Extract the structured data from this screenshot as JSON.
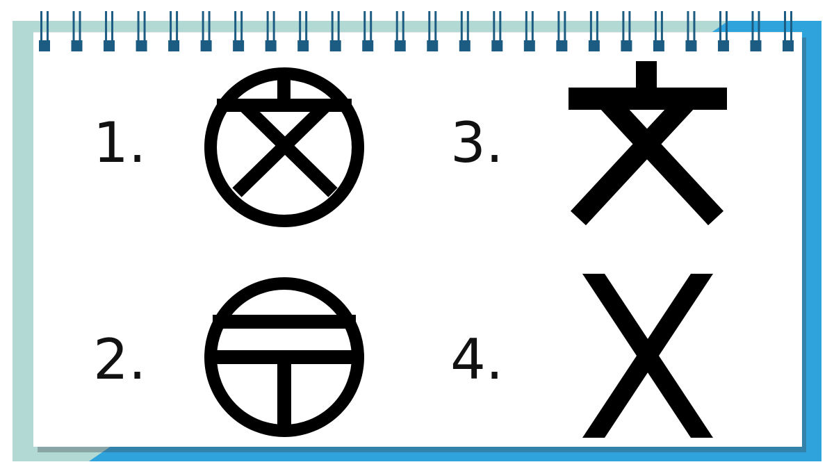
{
  "notebook": {
    "ring_count": 24,
    "colors": {
      "backing_teal": "#b3d9d4",
      "backing_blue": "#2ea3dc",
      "page": "#ffffff",
      "ring": "#1d5c82",
      "ink": "#000000"
    }
  },
  "items": [
    {
      "label": "1.",
      "icon": "circled-bun-icon"
    },
    {
      "label": "2.",
      "icon": "circled-post-office-mark-icon"
    },
    {
      "label": "3.",
      "icon": "bun-character-icon"
    },
    {
      "label": "4.",
      "icon": "x-cross-icon"
    }
  ]
}
